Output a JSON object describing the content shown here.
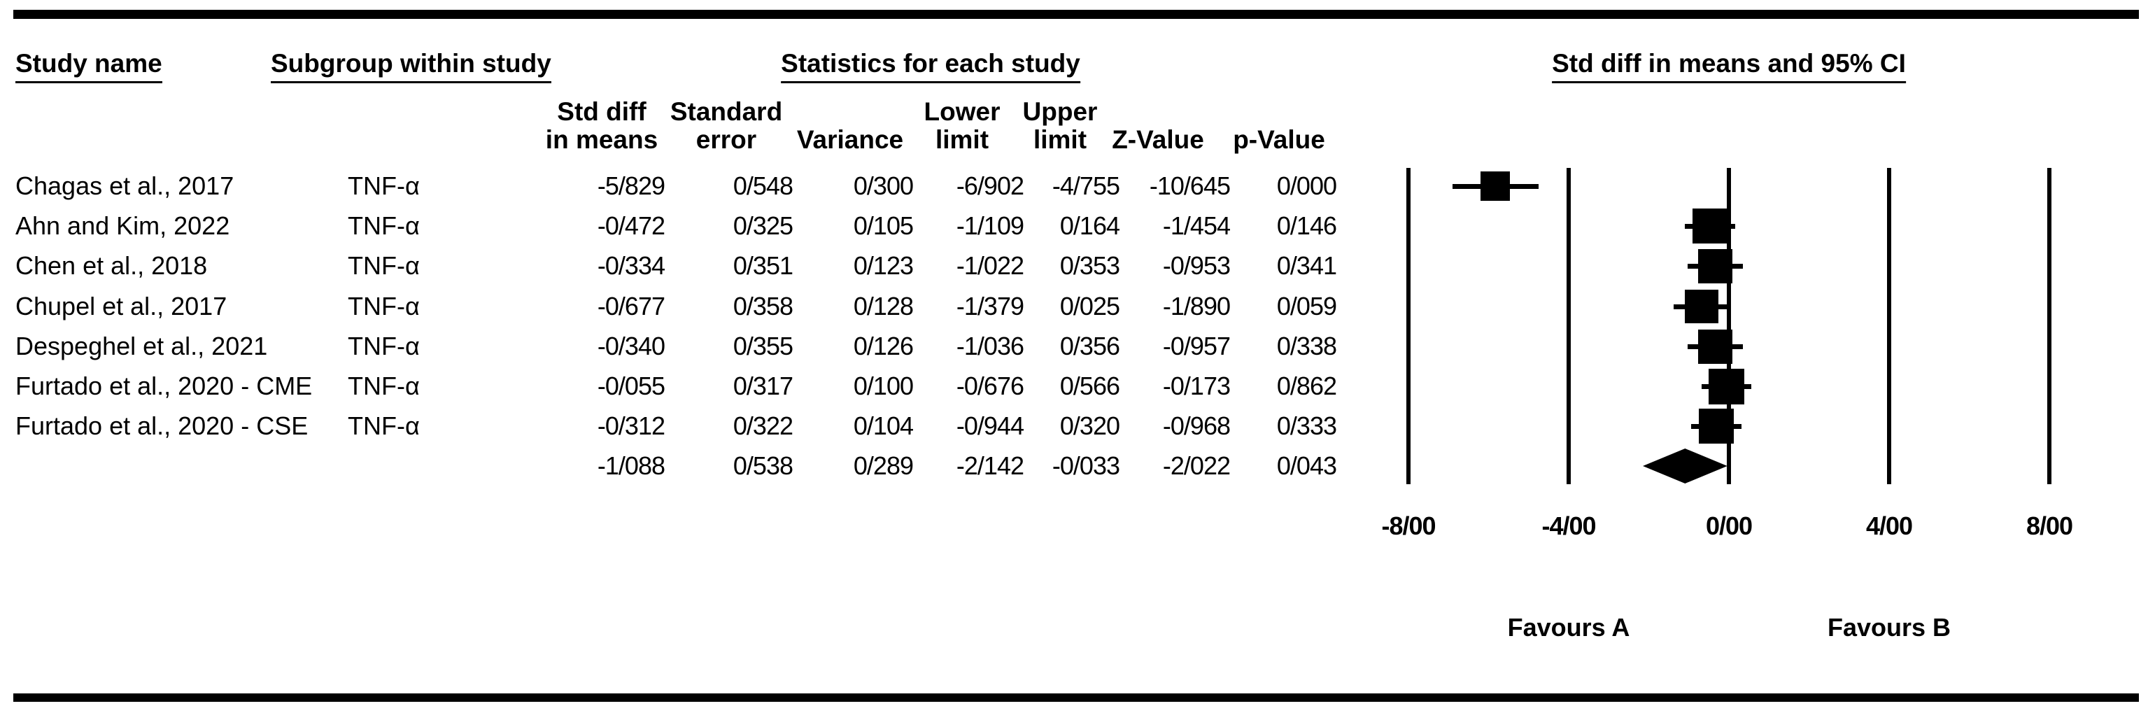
{
  "figure": {
    "group_headers": {
      "study_name": "Study name",
      "subgroup": "Subgroup within study",
      "statistics": "Statistics for each study",
      "plot_title": "Std diff in means and 95% CI"
    },
    "stat_columns": [
      {
        "lines": [
          "Std diff",
          "in means"
        ]
      },
      {
        "lines": [
          "Standard",
          "error"
        ]
      },
      {
        "lines": [
          "",
          "Variance"
        ]
      },
      {
        "lines": [
          "Lower",
          "limit"
        ]
      },
      {
        "lines": [
          "Upper",
          "limit"
        ]
      },
      {
        "lines": [
          "",
          "Z-Value"
        ]
      },
      {
        "lines": [
          "",
          "p-Value"
        ]
      }
    ],
    "favours_a": "Favours A",
    "favours_b": "Favours B"
  },
  "chart_data": {
    "type": "forest",
    "title": "Std diff in means and 95% CI",
    "effect_measure": "Std diff in means",
    "xlim": [
      -8,
      8
    ],
    "axis_ticks": [
      {
        "label": "-8/00",
        "value": -8
      },
      {
        "label": "-4/00",
        "value": -4
      },
      {
        "label": "0/00",
        "value": 0
      },
      {
        "label": "4/00",
        "value": 4
      },
      {
        "label": "8/00",
        "value": 8
      }
    ],
    "studies": [
      {
        "study": "Chagas et al., 2017",
        "subgroup": "TNF-α",
        "stats": [
          "-5/829",
          "0/548",
          "0/300",
          "-6/902",
          "-4/755",
          "-10/645",
          "0/000"
        ],
        "point": -5.829,
        "lower": -6.902,
        "upper": -4.755
      },
      {
        "study": "Ahn and Kim, 2022",
        "subgroup": "TNF-α",
        "stats": [
          "-0/472",
          "0/325",
          "0/105",
          "-1/109",
          "0/164",
          "-1/454",
          "0/146"
        ],
        "point": -0.472,
        "lower": -1.109,
        "upper": 0.164
      },
      {
        "study": "Chen et al., 2018",
        "subgroup": "TNF-α",
        "stats": [
          "-0/334",
          "0/351",
          "0/123",
          "-1/022",
          "0/353",
          "-0/953",
          "0/341"
        ],
        "point": -0.334,
        "lower": -1.022,
        "upper": 0.353
      },
      {
        "study": "Chupel et al., 2017",
        "subgroup": "TNF-α",
        "stats": [
          "-0/677",
          "0/358",
          "0/128",
          "-1/379",
          "0/025",
          "-1/890",
          "0/059"
        ],
        "point": -0.677,
        "lower": -1.379,
        "upper": 0.025
      },
      {
        "study": "Despeghel et al., 2021",
        "subgroup": "TNF-α",
        "stats": [
          "-0/340",
          "0/355",
          "0/126",
          "-1/036",
          "0/356",
          "-0/957",
          "0/338"
        ],
        "point": -0.34,
        "lower": -1.036,
        "upper": 0.356
      },
      {
        "study": "Furtado et al., 2020 - CME",
        "subgroup": "TNF-α",
        "stats": [
          "-0/055",
          "0/317",
          "0/100",
          "-0/676",
          "0/566",
          "-0/173",
          "0/862"
        ],
        "point": -0.055,
        "lower": -0.676,
        "upper": 0.566
      },
      {
        "study": "Furtado et al., 2020 - CSE",
        "subgroup": "TNF-α",
        "stats": [
          "-0/312",
          "0/322",
          "0/104",
          "-0/944",
          "0/320",
          "-0/968",
          "0/333"
        ],
        "point": -0.312,
        "lower": -0.944,
        "upper": 0.32
      }
    ],
    "summary": {
      "stats": [
        "-1/088",
        "0/538",
        "0/289",
        "-2/142",
        "-0/033",
        "-2/022",
        "0/043"
      ],
      "point": -1.088,
      "lower": -2.142,
      "upper": -0.033
    },
    "footer_labels": [
      {
        "text": "Favours A",
        "value": -4
      },
      {
        "text": "Favours B",
        "value": 4
      }
    ],
    "legend_position": "none",
    "grid": false
  }
}
